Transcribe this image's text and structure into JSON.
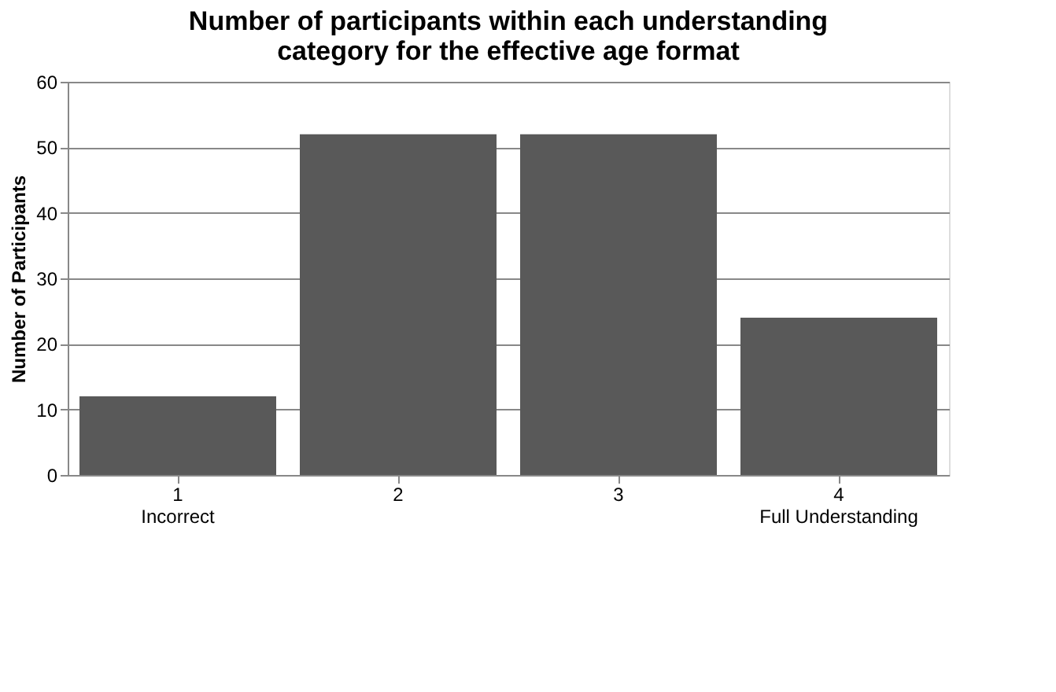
{
  "chart_data": {
    "type": "bar",
    "title": "Number of participants within each understanding\ncategory for the effective age format",
    "ylabel": "Number of Participants",
    "categories": [
      "1\nIncorrect",
      "2",
      "3",
      "4\nFull Understanding"
    ],
    "values": [
      12,
      52,
      52,
      24
    ],
    "color": "#595959",
    "ylim": [
      0,
      60
    ],
    "yticks": [
      0,
      10,
      20,
      30,
      40,
      50,
      60
    ],
    "grid": "y"
  }
}
